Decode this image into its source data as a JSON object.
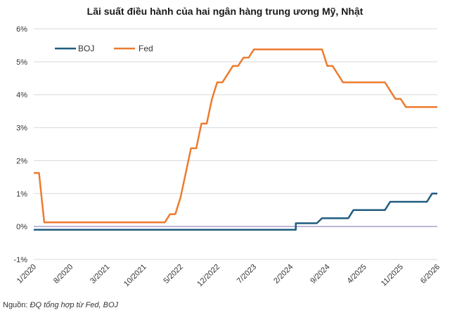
{
  "chart_data": {
    "type": "line",
    "title": "Lãi suất điều hành của hai ngân hàng trung ương Mỹ, Nhật",
    "xlabel": "",
    "ylabel": "",
    "x_range": [
      "2020-01",
      "2026-06"
    ],
    "x_tick_labels": [
      "1/2020",
      "8/2020",
      "3/2021",
      "10/2021",
      "5/2022",
      "12/2022",
      "7/2023",
      "2/2024",
      "9/2024",
      "4/2025",
      "11/2025",
      "6/2026"
    ],
    "y_tick_labels": [
      "6%",
      "5%",
      "4%",
      "3%",
      "2%",
      "1%",
      "0%",
      "-1%"
    ],
    "ylim": [
      -1,
      6
    ],
    "grid": "horizontal",
    "legend": "top-left",
    "colors": {
      "BOJ": "#1f5c80",
      "Fed": "#ec7b2f",
      "zero_line": "#9a8cc4",
      "grid": "#d9d9d9"
    },
    "series": [
      {
        "name": "BOJ",
        "points": [
          [
            "2020-01",
            -0.1
          ],
          [
            "2024-03",
            -0.1
          ],
          [
            "2024-03",
            0.1
          ],
          [
            "2024-07",
            0.1
          ],
          [
            "2024-08",
            0.25
          ],
          [
            "2025-01",
            0.25
          ],
          [
            "2025-02",
            0.5
          ],
          [
            "2025-08",
            0.5
          ],
          [
            "2025-09",
            0.75
          ],
          [
            "2026-04",
            0.75
          ],
          [
            "2026-05",
            1.0
          ],
          [
            "2026-06",
            1.0
          ]
        ]
      },
      {
        "name": "Fed",
        "points": [
          [
            "2020-01",
            1.625
          ],
          [
            "2020-02",
            1.625
          ],
          [
            "2020-03",
            0.125
          ],
          [
            "2022-02",
            0.125
          ],
          [
            "2022-03",
            0.375
          ],
          [
            "2022-04",
            0.375
          ],
          [
            "2022-05",
            0.875
          ],
          [
            "2022-06",
            1.625
          ],
          [
            "2022-07",
            2.375
          ],
          [
            "2022-08",
            2.375
          ],
          [
            "2022-09",
            3.125
          ],
          [
            "2022-10",
            3.125
          ],
          [
            "2022-11",
            3.875
          ],
          [
            "2022-12",
            4.375
          ],
          [
            "2023-01",
            4.375
          ],
          [
            "2023-02",
            4.625
          ],
          [
            "2023-03",
            4.875
          ],
          [
            "2023-04",
            4.875
          ],
          [
            "2023-05",
            5.125
          ],
          [
            "2023-06",
            5.125
          ],
          [
            "2023-07",
            5.375
          ],
          [
            "2024-08",
            5.375
          ],
          [
            "2024-09",
            4.875
          ],
          [
            "2024-10",
            4.875
          ],
          [
            "2024-11",
            4.625
          ],
          [
            "2024-12",
            4.375
          ],
          [
            "2025-08",
            4.375
          ],
          [
            "2025-09",
            4.125
          ],
          [
            "2025-10",
            3.875
          ],
          [
            "2025-11",
            3.875
          ],
          [
            "2025-12",
            3.625
          ],
          [
            "2026-06",
            3.625
          ]
        ]
      }
    ]
  },
  "legend": {
    "boj_label": "BOJ",
    "fed_label": "Fed"
  },
  "source": {
    "prefix": "Nguồn: ",
    "text": "ĐQ tổng hợp từ Fed, BOJ"
  }
}
